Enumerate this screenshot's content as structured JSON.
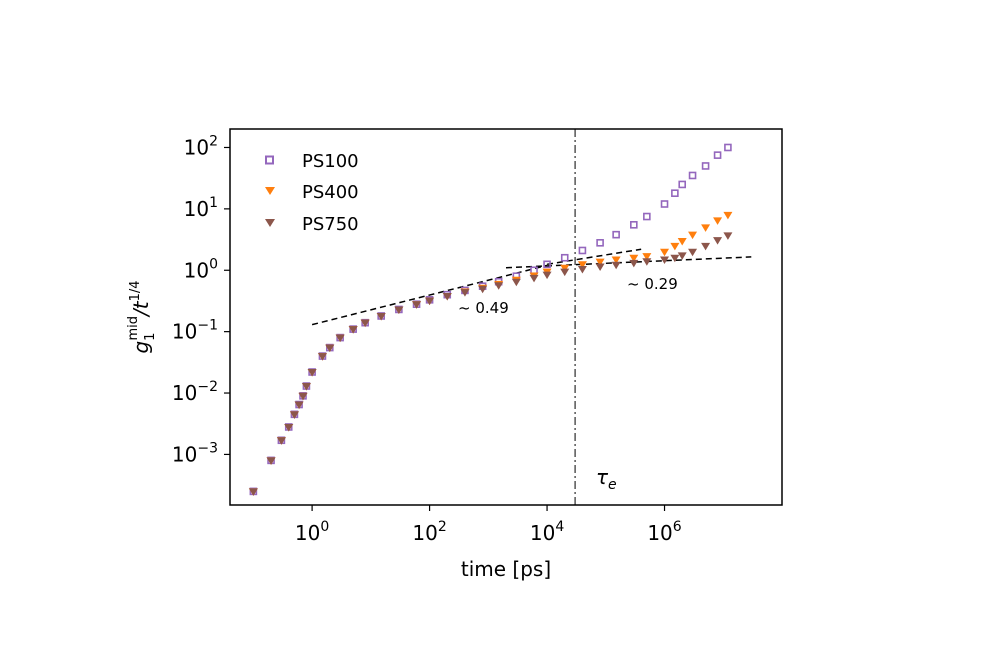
{
  "chart_data": {
    "type": "scatter",
    "xlabel": "time [ps]",
    "ylabel": {
      "base": "g",
      "sub": "1",
      "sup": "mid",
      "tail": "/t",
      "tail_sup": "1/4"
    },
    "x_scale": "log",
    "y_scale": "log",
    "xlim": [
      0.04,
      100000000
    ],
    "ylim": [
      0.00015,
      200
    ],
    "x_ticks": [
      {
        "value": 1,
        "base": "10",
        "exp": "0"
      },
      {
        "value": 100,
        "base": "10",
        "exp": "2"
      },
      {
        "value": 10000,
        "base": "10",
        "exp": "4"
      },
      {
        "value": 1000000,
        "base": "10",
        "exp": "6"
      }
    ],
    "y_ticks": [
      {
        "value": 0.001,
        "base": "10",
        "exp": "−3"
      },
      {
        "value": 0.01,
        "base": "10",
        "exp": "−2"
      },
      {
        "value": 0.1,
        "base": "10",
        "exp": "−1"
      },
      {
        "value": 1,
        "base": "10",
        "exp": "0"
      },
      {
        "value": 10,
        "base": "10",
        "exp": "1"
      },
      {
        "value": 100,
        "base": "10",
        "exp": "2"
      }
    ],
    "legend_position": "top-left",
    "series": [
      {
        "name": "PS100",
        "marker": "square",
        "color": "#9467bd",
        "points": [
          [
            0.1,
            0.00025
          ],
          [
            0.2,
            0.0008
          ],
          [
            0.3,
            0.0017
          ],
          [
            0.4,
            0.0028
          ],
          [
            0.5,
            0.0045
          ],
          [
            0.6,
            0.0065
          ],
          [
            0.7,
            0.009
          ],
          [
            0.8,
            0.013
          ],
          [
            1,
            0.022
          ],
          [
            1.5,
            0.04
          ],
          [
            2,
            0.055
          ],
          [
            3,
            0.08
          ],
          [
            5,
            0.11
          ],
          [
            8,
            0.14
          ],
          [
            15,
            0.18
          ],
          [
            30,
            0.23
          ],
          [
            60,
            0.28
          ],
          [
            100,
            0.33
          ],
          [
            200,
            0.4
          ],
          [
            400,
            0.47
          ],
          [
            800,
            0.55
          ],
          [
            1500,
            0.65
          ],
          [
            3000,
            0.8
          ],
          [
            6000,
            1.0
          ],
          [
            10000,
            1.25
          ],
          [
            20000,
            1.6
          ],
          [
            40000,
            2.1
          ],
          [
            80000,
            2.8
          ],
          [
            150000,
            3.8
          ],
          [
            300000,
            5.5
          ],
          [
            500000,
            7.5
          ],
          [
            1000000,
            12
          ],
          [
            1500000,
            18
          ],
          [
            2000000,
            25
          ],
          [
            3000000,
            35
          ],
          [
            5000000,
            50
          ],
          [
            8000000,
            75
          ],
          [
            12000000,
            100
          ]
        ]
      },
      {
        "name": "PS400",
        "marker": "triangle-down",
        "color": "#ff7f0e",
        "points": [
          [
            0.1,
            0.00025
          ],
          [
            0.2,
            0.0008
          ],
          [
            0.3,
            0.0017
          ],
          [
            0.4,
            0.0028
          ],
          [
            0.5,
            0.0045
          ],
          [
            0.6,
            0.0065
          ],
          [
            0.7,
            0.009
          ],
          [
            0.8,
            0.013
          ],
          [
            1,
            0.022
          ],
          [
            1.5,
            0.04
          ],
          [
            2,
            0.055
          ],
          [
            3,
            0.08
          ],
          [
            5,
            0.11
          ],
          [
            8,
            0.14
          ],
          [
            15,
            0.18
          ],
          [
            30,
            0.23
          ],
          [
            60,
            0.28
          ],
          [
            100,
            0.32
          ],
          [
            200,
            0.38
          ],
          [
            400,
            0.45
          ],
          [
            800,
            0.52
          ],
          [
            1500,
            0.6
          ],
          [
            3000,
            0.7
          ],
          [
            6000,
            0.82
          ],
          [
            10000,
            0.95
          ],
          [
            20000,
            1.1
          ],
          [
            40000,
            1.25
          ],
          [
            80000,
            1.38
          ],
          [
            150000,
            1.5
          ],
          [
            300000,
            1.6
          ],
          [
            500000,
            1.7
          ],
          [
            1000000,
            2.0
          ],
          [
            1500000,
            2.5
          ],
          [
            2000000,
            3.0
          ],
          [
            3000000,
            3.8
          ],
          [
            5000000,
            5.0
          ],
          [
            8000000,
            6.5
          ],
          [
            12000000,
            8.0
          ]
        ]
      },
      {
        "name": "PS750",
        "marker": "triangle-down",
        "color": "#8c564b",
        "points": [
          [
            0.1,
            0.00025
          ],
          [
            0.2,
            0.0008
          ],
          [
            0.3,
            0.0017
          ],
          [
            0.4,
            0.0028
          ],
          [
            0.5,
            0.0045
          ],
          [
            0.6,
            0.0065
          ],
          [
            0.7,
            0.009
          ],
          [
            0.8,
            0.013
          ],
          [
            1,
            0.022
          ],
          [
            1.5,
            0.04
          ],
          [
            2,
            0.055
          ],
          [
            3,
            0.08
          ],
          [
            5,
            0.11
          ],
          [
            8,
            0.14
          ],
          [
            15,
            0.18
          ],
          [
            30,
            0.23
          ],
          [
            60,
            0.28
          ],
          [
            100,
            0.32
          ],
          [
            200,
            0.38
          ],
          [
            400,
            0.44
          ],
          [
            800,
            0.5
          ],
          [
            1500,
            0.57
          ],
          [
            3000,
            0.65
          ],
          [
            6000,
            0.75
          ],
          [
            10000,
            0.85
          ],
          [
            20000,
            0.95
          ],
          [
            40000,
            1.05
          ],
          [
            80000,
            1.15
          ],
          [
            150000,
            1.23
          ],
          [
            300000,
            1.32
          ],
          [
            500000,
            1.4
          ],
          [
            1000000,
            1.5
          ],
          [
            1500000,
            1.6
          ],
          [
            2000000,
            1.75
          ],
          [
            3000000,
            2.0
          ],
          [
            5000000,
            2.5
          ],
          [
            8000000,
            3.1
          ],
          [
            12000000,
            3.7
          ]
        ]
      }
    ],
    "guide_lines": [
      {
        "label": "~ 0.49",
        "points": [
          [
            1,
            0.13
          ],
          [
            10000,
            1.2
          ]
        ]
      },
      {
        "label": "~ 0.29",
        "points": [
          [
            2000,
            1.1
          ],
          [
            30000000,
            1.65
          ]
        ]
      },
      {
        "label": "",
        "points": [
          [
            10000,
            1.25
          ],
          [
            400000,
            2.2
          ]
        ]
      }
    ],
    "vline": {
      "x": 30000,
      "label": "τ",
      "label_sub": "e"
    }
  }
}
